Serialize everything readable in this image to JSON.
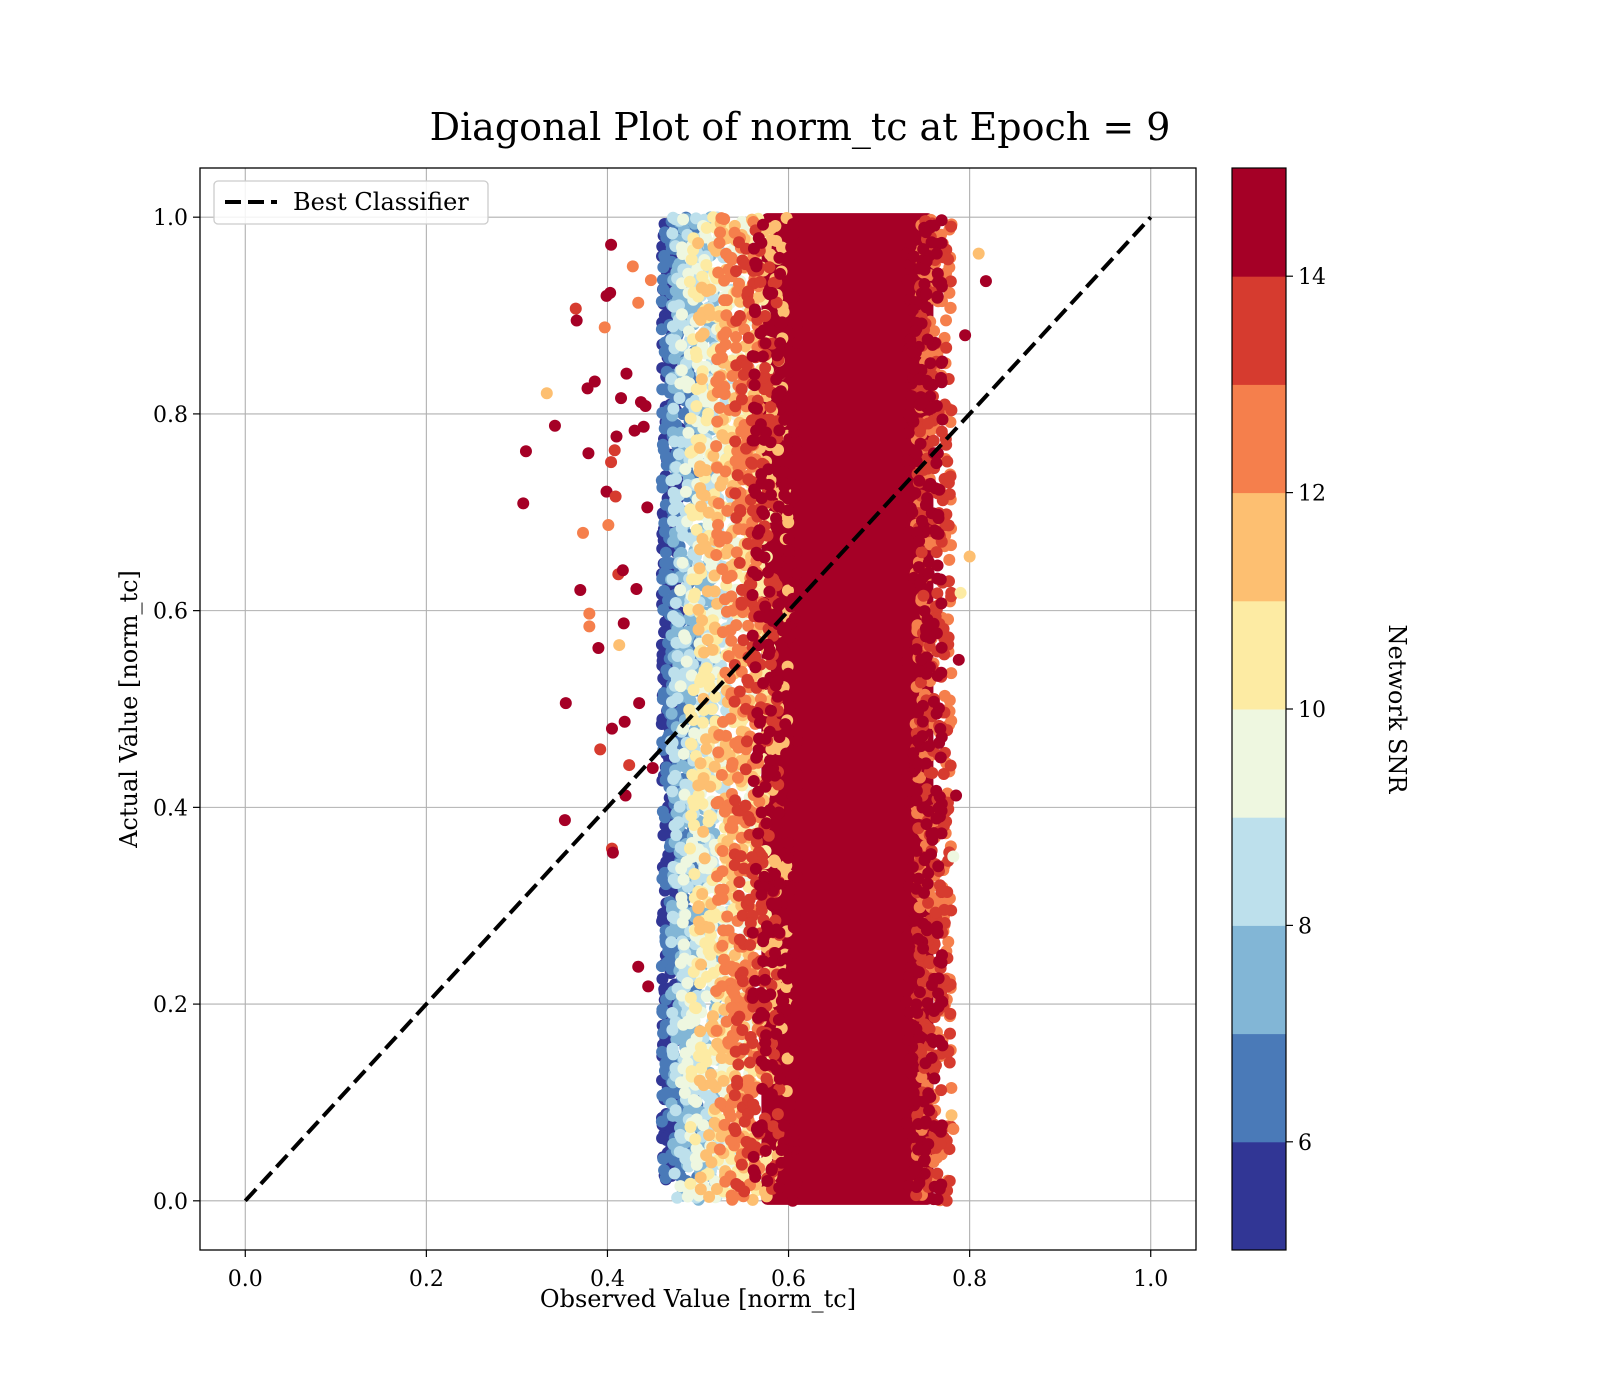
{
  "chart_data": {
    "type": "scatter",
    "title": "Diagonal Plot of norm_tc at Epoch = 9",
    "xlabel": "Observed Value [norm_tc]",
    "ylabel": "Actual Value [norm_tc]",
    "xlim": [
      -0.05,
      1.05
    ],
    "ylim": [
      -0.05,
      1.05
    ],
    "xticks": [
      "0.0",
      "0.2",
      "0.4",
      "0.6",
      "0.8",
      "1.0"
    ],
    "yticks": [
      "0.0",
      "0.2",
      "0.4",
      "0.6",
      "0.8",
      "1.0"
    ],
    "grid": true,
    "legend": {
      "placement": "upper-left",
      "entries": [
        {
          "label": "Best Classifier",
          "style": "black dashed line"
        }
      ]
    },
    "reference_line": {
      "name": "Best Classifier",
      "x": [
        0,
        1
      ],
      "y": [
        0,
        1
      ],
      "color": "#000000",
      "dash": "dashed"
    },
    "colorbar": {
      "label": "Network SNR",
      "range": [
        5,
        15
      ],
      "ticks": [
        "6",
        "8",
        "10",
        "12",
        "14"
      ],
      "levels": [
        {
          "from": 5,
          "to": 6,
          "color": "#313695"
        },
        {
          "from": 6,
          "to": 7,
          "color": "#4a7ab8"
        },
        {
          "from": 7,
          "to": 8,
          "color": "#82b6d6"
        },
        {
          "from": 8,
          "to": 9,
          "color": "#bde0ec"
        },
        {
          "from": 9,
          "to": 10,
          "color": "#eef7e0"
        },
        {
          "from": 10,
          "to": 11,
          "color": "#fdeba3"
        },
        {
          "from": 11,
          "to": 12,
          "color": "#fdbf71"
        },
        {
          "from": 12,
          "to": 13,
          "color": "#f57f4c"
        },
        {
          "from": 13,
          "to": 14,
          "color": "#d63b2f"
        },
        {
          "from": 14,
          "to": 15,
          "color": "#a50026"
        }
      ]
    },
    "point_bands": [
      {
        "snr": 5.5,
        "x_range": [
          0.46,
          0.48
        ],
        "y_range": [
          0.02,
          1.0
        ]
      },
      {
        "snr": 6.5,
        "x_range": [
          0.46,
          0.5
        ],
        "y_range": [
          0.02,
          1.0
        ]
      },
      {
        "snr": 7.5,
        "x_range": [
          0.47,
          0.52
        ],
        "y_range": [
          0.0,
          1.0
        ]
      },
      {
        "snr": 8.5,
        "x_range": [
          0.47,
          0.54
        ],
        "y_range": [
          0.0,
          1.0
        ]
      },
      {
        "snr": 9.5,
        "x_range": [
          0.48,
          0.56
        ],
        "y_range": [
          0.0,
          1.0
        ]
      },
      {
        "snr": 10.5,
        "x_range": [
          0.49,
          0.58
        ],
        "y_range": [
          0.0,
          1.0
        ]
      },
      {
        "snr": 11.5,
        "x_range": [
          0.5,
          0.6
        ],
        "y_range": [
          0.0,
          1.0
        ]
      },
      {
        "snr": 12.5,
        "x_range": [
          0.52,
          0.78
        ],
        "y_range": [
          0.0,
          1.0
        ]
      },
      {
        "snr": 13.5,
        "x_range": [
          0.54,
          0.78
        ],
        "y_range": [
          0.0,
          1.0
        ]
      },
      {
        "snr": 14.5,
        "x_range": [
          0.56,
          0.77
        ],
        "y_range": [
          0.0,
          1.0
        ]
      }
    ],
    "dense_region": {
      "snr": 14.5,
      "x_range": [
        0.57,
        0.76
      ],
      "y_range": [
        0.0,
        1.0
      ]
    },
    "outliers": [
      {
        "x": 0.307,
        "y": 0.709,
        "snr": 14.5
      },
      {
        "x": 0.31,
        "y": 0.762,
        "snr": 14.5
      },
      {
        "x": 0.333,
        "y": 0.821,
        "snr": 11.5
      },
      {
        "x": 0.342,
        "y": 0.788,
        "snr": 14.5
      },
      {
        "x": 0.354,
        "y": 0.506,
        "snr": 14.5
      },
      {
        "x": 0.353,
        "y": 0.387,
        "snr": 14.5
      },
      {
        "x": 0.365,
        "y": 0.907,
        "snr": 13.5
      },
      {
        "x": 0.366,
        "y": 0.895,
        "snr": 14.5
      },
      {
        "x": 0.37,
        "y": 0.621,
        "snr": 14.5
      },
      {
        "x": 0.373,
        "y": 0.679,
        "snr": 12.5
      },
      {
        "x": 0.378,
        "y": 0.826,
        "snr": 14.5
      },
      {
        "x": 0.379,
        "y": 0.76,
        "snr": 14.5
      },
      {
        "x": 0.38,
        "y": 0.597,
        "snr": 12.5
      },
      {
        "x": 0.38,
        "y": 0.584,
        "snr": 12.5
      },
      {
        "x": 0.386,
        "y": 0.833,
        "snr": 14.5
      },
      {
        "x": 0.39,
        "y": 0.562,
        "snr": 14.5
      },
      {
        "x": 0.392,
        "y": 0.459,
        "snr": 13.5
      },
      {
        "x": 0.397,
        "y": 0.888,
        "snr": 12.5
      },
      {
        "x": 0.399,
        "y": 0.92,
        "snr": 14.5
      },
      {
        "x": 0.399,
        "y": 0.721,
        "snr": 14.5
      },
      {
        "x": 0.401,
        "y": 0.687,
        "snr": 12.5
      },
      {
        "x": 0.404,
        "y": 0.972,
        "snr": 14.5
      },
      {
        "x": 0.403,
        "y": 0.923,
        "snr": 14.5
      },
      {
        "x": 0.404,
        "y": 0.751,
        "snr": 13.5
      },
      {
        "x": 0.405,
        "y": 0.48,
        "snr": 14.5
      },
      {
        "x": 0.405,
        "y": 0.358,
        "snr": 13.5
      },
      {
        "x": 0.406,
        "y": 0.354,
        "snr": 14.5
      },
      {
        "x": 0.408,
        "y": 0.763,
        "snr": 13.5
      },
      {
        "x": 0.409,
        "y": 0.716,
        "snr": 13.5
      },
      {
        "x": 0.41,
        "y": 0.777,
        "snr": 14.5
      },
      {
        "x": 0.412,
        "y": 0.637,
        "snr": 13.5
      },
      {
        "x": 0.413,
        "y": 0.565,
        "snr": 11.5
      },
      {
        "x": 0.415,
        "y": 0.816,
        "snr": 14.5
      },
      {
        "x": 0.417,
        "y": 0.641,
        "snr": 14.5
      },
      {
        "x": 0.418,
        "y": 0.587,
        "snr": 14.5
      },
      {
        "x": 0.419,
        "y": 0.487,
        "snr": 14.5
      },
      {
        "x": 0.42,
        "y": 0.412,
        "snr": 14.5
      },
      {
        "x": 0.421,
        "y": 0.841,
        "snr": 14.5
      },
      {
        "x": 0.424,
        "y": 0.443,
        "snr": 13.5
      },
      {
        "x": 0.428,
        "y": 0.95,
        "snr": 12.5
      },
      {
        "x": 0.43,
        "y": 0.783,
        "snr": 14.5
      },
      {
        "x": 0.432,
        "y": 0.622,
        "snr": 14.5
      },
      {
        "x": 0.434,
        "y": 0.913,
        "snr": 12.5
      },
      {
        "x": 0.434,
        "y": 0.238,
        "snr": 14.5
      },
      {
        "x": 0.435,
        "y": 0.506,
        "snr": 14.5
      },
      {
        "x": 0.437,
        "y": 0.812,
        "snr": 14.5
      },
      {
        "x": 0.44,
        "y": 0.787,
        "snr": 14.5
      },
      {
        "x": 0.442,
        "y": 0.808,
        "snr": 14.5
      },
      {
        "x": 0.444,
        "y": 0.705,
        "snr": 14.5
      },
      {
        "x": 0.445,
        "y": 0.218,
        "snr": 14.5
      },
      {
        "x": 0.448,
        "y": 0.936,
        "snr": 12.5
      },
      {
        "x": 0.45,
        "y": 0.44,
        "snr": 14.5
      },
      {
        "x": 0.81,
        "y": 0.963,
        "snr": 11.5
      },
      {
        "x": 0.818,
        "y": 0.935,
        "snr": 14.5
      },
      {
        "x": 0.8,
        "y": 0.655,
        "snr": 11.5
      },
      {
        "x": 0.795,
        "y": 0.88,
        "snr": 14.5
      },
      {
        "x": 0.79,
        "y": 0.618,
        "snr": 10.5
      },
      {
        "x": 0.788,
        "y": 0.55,
        "snr": 14.5
      },
      {
        "x": 0.785,
        "y": 0.412,
        "snr": 14.5
      },
      {
        "x": 0.782,
        "y": 0.35,
        "snr": 9.5
      },
      {
        "x": 0.78,
        "y": 0.087,
        "snr": 11.5
      },
      {
        "x": 0.782,
        "y": 0.073,
        "snr": 12.5
      },
      {
        "x": 0.77,
        "y": 0.158,
        "snr": 14.5
      },
      {
        "x": 0.767,
        "y": 0.012,
        "snr": 14.5
      }
    ]
  }
}
